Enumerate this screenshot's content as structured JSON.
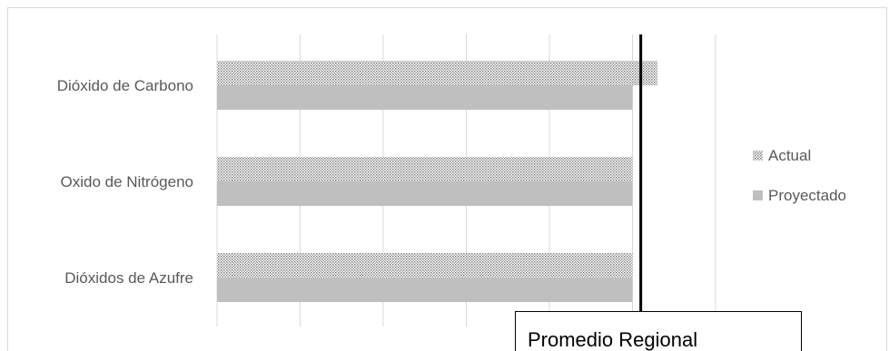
{
  "chart_data": {
    "type": "bar",
    "orientation": "horizontal",
    "categories": [
      "Dióxido de Carbono",
      "Oxido de Nitrógeno",
      "Dióxidos de Azufre"
    ],
    "series": [
      {
        "name": "Actual",
        "values": [
          5.3,
          5.0,
          5.0
        ],
        "pattern": "dotted"
      },
      {
        "name": "Proyectado",
        "values": [
          5.0,
          5.0,
          5.0
        ],
        "color": "#bfbfbf"
      }
    ],
    "xlim": [
      0,
      6
    ],
    "grid": true,
    "legend_position": "right",
    "reference_line": {
      "value": 5.1,
      "label": "Promedio Regional",
      "color": "#000000"
    }
  }
}
